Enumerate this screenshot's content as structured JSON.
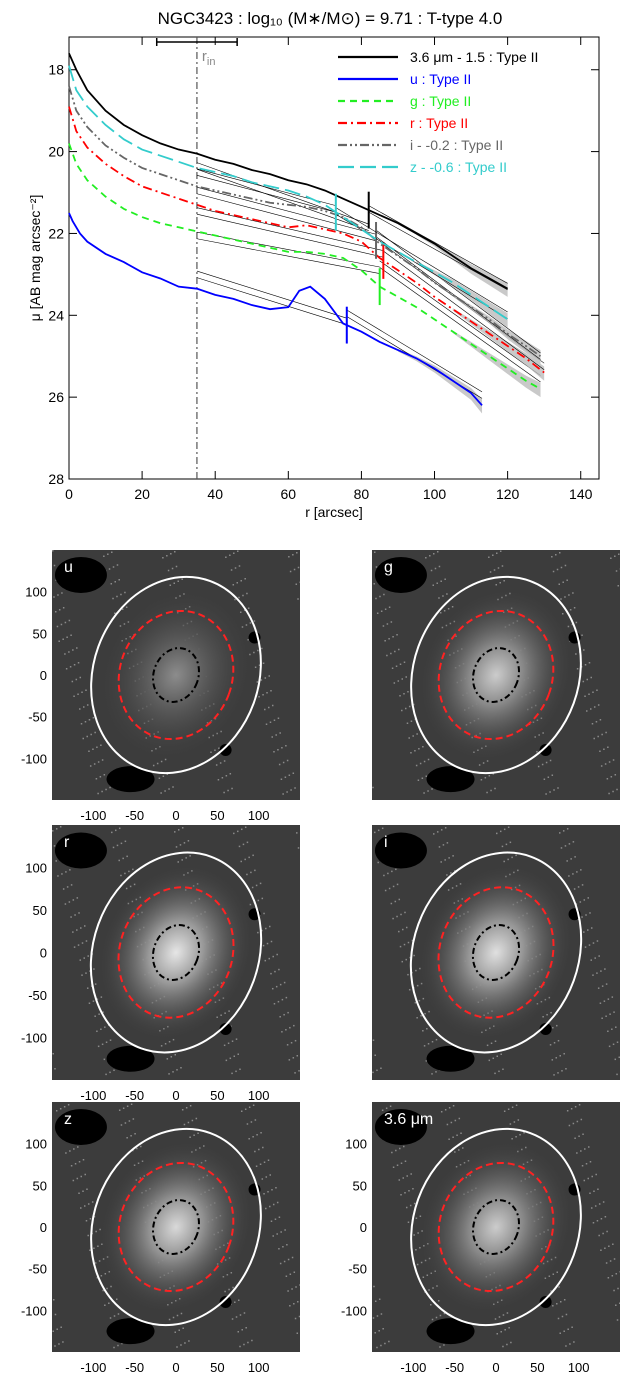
{
  "chart_data": [
    {
      "type": "line",
      "title": "NGC3423 : log₁₀ (M∗/M⊙) = 9.71 : T-type 4.0",
      "xlabel": "r [arcsec]",
      "ylabel": "μ [AB mag arcsec⁻²]",
      "xlim": [
        0,
        145
      ],
      "ylim": [
        28,
        17.2
      ],
      "y_inverted": true,
      "x_ticks": [
        0,
        20,
        40,
        60,
        80,
        100,
        120,
        140
      ],
      "y_ticks": [
        18,
        20,
        22,
        24,
        26,
        28
      ],
      "legend_position": "top-right",
      "annotations": {
        "r_in_label": "r",
        "r_in_sub": "in",
        "r_in_value": 35,
        "r_in_error_bar": [
          24,
          46
        ]
      },
      "series": [
        {
          "name": "3.6 μm - 1.5 : Type II",
          "color": "#000000",
          "style": "solid",
          "break_r": 82,
          "x": [
            0,
            2,
            5,
            10,
            15,
            20,
            25,
            30,
            35,
            40,
            45,
            50,
            55,
            60,
            65,
            70,
            75,
            80,
            85,
            90,
            95,
            100,
            105,
            110,
            115,
            120
          ],
          "y": [
            17.6,
            18.0,
            18.5,
            19.0,
            19.35,
            19.6,
            19.8,
            19.95,
            20.05,
            20.2,
            20.3,
            20.45,
            20.55,
            20.7,
            20.8,
            20.95,
            21.15,
            21.35,
            21.55,
            21.75,
            22.0,
            22.25,
            22.55,
            22.85,
            23.1,
            23.35
          ],
          "fit_inner": [
            [
              35,
              20.35
            ],
            [
              82,
              21.85
            ]
          ],
          "fit_outer": [
            [
              82,
              21.4
            ],
            [
              120,
              23.3
            ]
          ]
        },
        {
          "name": "u : Type II",
          "color": "#0000ff",
          "style": "solid",
          "break_r": 76,
          "x": [
            0,
            1,
            3,
            5,
            10,
            15,
            20,
            25,
            30,
            35,
            40,
            45,
            50,
            55,
            60,
            63,
            66,
            70,
            75,
            80,
            85,
            90,
            95,
            100,
            105,
            110,
            113
          ],
          "y": [
            21.5,
            21.7,
            22.0,
            22.2,
            22.5,
            22.7,
            22.95,
            23.1,
            23.3,
            23.35,
            23.5,
            23.6,
            23.75,
            23.85,
            23.8,
            23.4,
            23.3,
            23.6,
            24.2,
            24.4,
            24.65,
            24.85,
            25.05,
            25.3,
            25.6,
            25.9,
            26.2
          ],
          "fit_inner": [
            [
              35,
              23.0
            ],
            [
              76,
              24.15
            ]
          ],
          "fit_outer": [
            [
              76,
              23.95
            ],
            [
              113,
              25.95
            ]
          ]
        },
        {
          "name": "g : Type II",
          "color": "#22ee22",
          "style": "dashed",
          "break_r": 85,
          "x": [
            0,
            2,
            5,
            10,
            15,
            20,
            25,
            30,
            35,
            40,
            45,
            50,
            55,
            60,
            65,
            70,
            75,
            80,
            85,
            90,
            95,
            100,
            105,
            110,
            115,
            120,
            125,
            129
          ],
          "y": [
            19.8,
            20.3,
            20.7,
            21.1,
            21.4,
            21.6,
            21.75,
            21.85,
            21.95,
            22.05,
            22.15,
            22.25,
            22.35,
            22.45,
            22.45,
            22.5,
            22.6,
            22.9,
            23.3,
            23.55,
            23.8,
            24.1,
            24.4,
            24.7,
            25.0,
            25.3,
            25.6,
            25.8
          ],
          "fit_inner": [
            [
              35,
              22.05
            ],
            [
              85,
              22.9
            ]
          ],
          "fit_outer": [
            [
              85,
              22.75
            ],
            [
              129,
              25.55
            ]
          ]
        },
        {
          "name": "r : Type II",
          "color": "#ff0000",
          "style": "dashdot",
          "break_r": 86,
          "x": [
            0,
            2,
            5,
            10,
            15,
            20,
            25,
            30,
            35,
            40,
            45,
            50,
            55,
            60,
            65,
            70,
            75,
            80,
            85,
            90,
            95,
            100,
            105,
            110,
            115,
            120,
            125,
            130
          ],
          "y": [
            18.9,
            19.5,
            19.9,
            20.3,
            20.6,
            20.85,
            21.0,
            21.15,
            21.3,
            21.45,
            21.55,
            21.65,
            21.75,
            21.85,
            21.8,
            21.9,
            22.0,
            22.2,
            22.6,
            22.9,
            23.2,
            23.55,
            23.85,
            24.15,
            24.45,
            24.75,
            25.05,
            25.4
          ],
          "fit_inner": [
            [
              35,
              21.45
            ],
            [
              86,
              22.5
            ]
          ],
          "fit_outer": [
            [
              86,
              22.35
            ],
            [
              130,
              25.25
            ]
          ]
        },
        {
          "name": "i - -0.2 : Type II",
          "color": "#666666",
          "style": "dashdotdot",
          "break_r": 84,
          "x": [
            0,
            2,
            5,
            10,
            15,
            20,
            25,
            30,
            35,
            40,
            45,
            50,
            55,
            60,
            65,
            70,
            75,
            80,
            85,
            90,
            95,
            100,
            105,
            110,
            115,
            120,
            125,
            129
          ],
          "y": [
            18.4,
            19.0,
            19.4,
            19.85,
            20.15,
            20.4,
            20.55,
            20.7,
            20.85,
            20.95,
            21.05,
            21.15,
            21.25,
            21.3,
            21.35,
            21.45,
            21.6,
            21.85,
            22.25,
            22.55,
            22.85,
            23.2,
            23.5,
            23.8,
            24.1,
            24.45,
            24.75,
            25.0
          ],
          "fit_inner": [
            [
              35,
              20.95
            ],
            [
              84,
              22.1
            ]
          ],
          "fit_outer": [
            [
              84,
              22.0
            ],
            [
              129,
              25.0
            ]
          ]
        },
        {
          "name": "z - -0.6 : Type II",
          "color": "#33cccc",
          "style": "longdash",
          "break_r": 73,
          "x": [
            0,
            2,
            5,
            10,
            15,
            20,
            25,
            30,
            35,
            40,
            45,
            50,
            55,
            60,
            65,
            70,
            75,
            80,
            85,
            90,
            95,
            100,
            105,
            110,
            115,
            120
          ],
          "y": [
            17.9,
            18.5,
            18.9,
            19.35,
            19.7,
            19.95,
            20.1,
            20.25,
            20.4,
            20.5,
            20.6,
            20.75,
            20.85,
            20.95,
            21.1,
            21.3,
            21.6,
            21.9,
            22.2,
            22.45,
            22.7,
            22.95,
            23.2,
            23.5,
            23.8,
            24.1
          ],
          "fit_inner": [
            [
              35,
              20.5
            ],
            [
              73,
              21.4
            ]
          ],
          "fit_outer": [
            [
              73,
              21.45
            ],
            [
              120,
              24.0
            ]
          ]
        }
      ]
    },
    {
      "type": "image-panels",
      "panels": [
        {
          "label": "u",
          "x_ticks": [
            -100,
            -50,
            0,
            50,
            100
          ],
          "y_ticks": [
            100,
            50,
            0,
            -50,
            -100
          ],
          "brightness": 0.55
        },
        {
          "label": "g",
          "x_ticks": [],
          "y_ticks": [],
          "brightness": 0.8
        },
        {
          "label": "r",
          "x_ticks": [
            -100,
            -50,
            0,
            50,
            100
          ],
          "y_ticks": [
            100,
            50,
            0,
            -50,
            -100
          ],
          "brightness": 0.9
        },
        {
          "label": "i",
          "x_ticks": [],
          "y_ticks": [],
          "brightness": 0.88
        },
        {
          "label": "z",
          "x_ticks": [
            -100,
            -50,
            0,
            50,
            100
          ],
          "y_ticks": [
            100,
            50,
            0,
            -50,
            -100
          ],
          "brightness": 0.85
        },
        {
          "label": "3.6 μm",
          "x_ticks": [
            -100,
            -50,
            0,
            50,
            100
          ],
          "y_ticks": [
            100,
            50,
            0,
            -50,
            -100
          ],
          "brightness": 0.8
        }
      ],
      "panel_xlim": [
        -150,
        150
      ],
      "panel_ylim": [
        150,
        -150
      ],
      "outer_ellipse_color": "#ffffff",
      "break_ellipse_color": "#ff2222",
      "inner_ellipse_color": "#000000"
    }
  ]
}
